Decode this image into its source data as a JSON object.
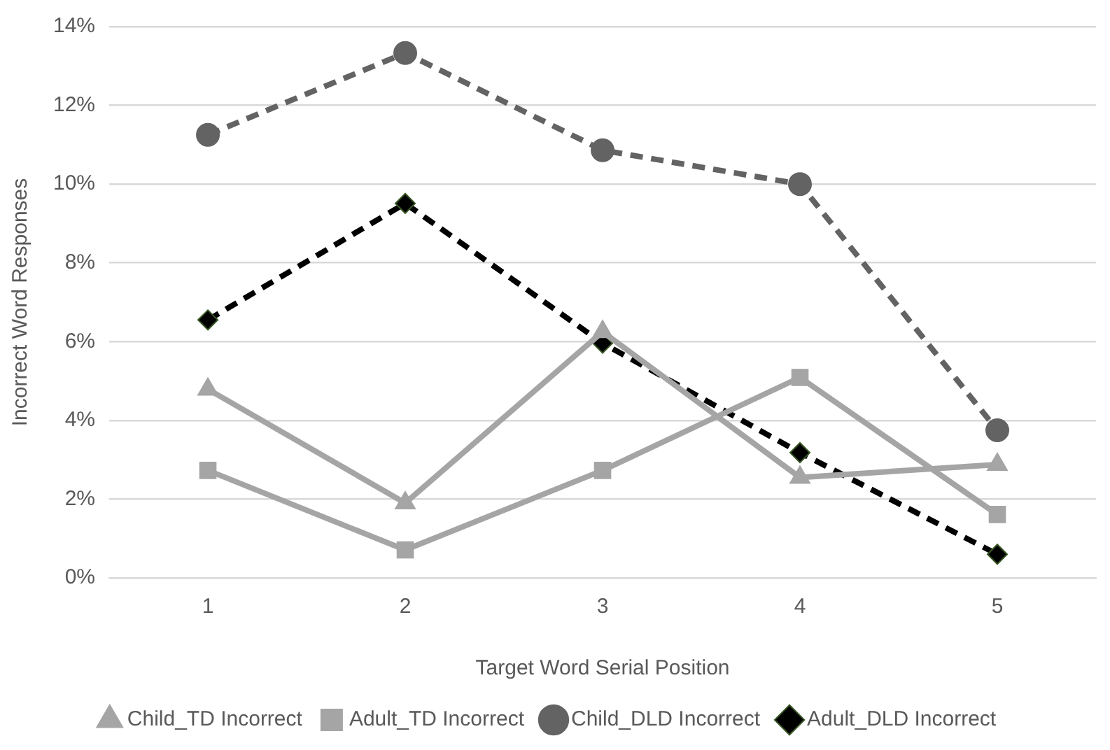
{
  "chart_data": {
    "type": "line",
    "xlabel": "Target Word Serial Position",
    "ylabel": "Incorrect Word Responses",
    "categories": [
      "1",
      "2",
      "3",
      "4",
      "5"
    ],
    "ylim": [
      0,
      14
    ],
    "yticks": [
      {
        "value": 0,
        "label": "0%"
      },
      {
        "value": 2,
        "label": "2%"
      },
      {
        "value": 4,
        "label": "4%"
      },
      {
        "value": 6,
        "label": "6%"
      },
      {
        "value": 8,
        "label": "8%"
      },
      {
        "value": 10,
        "label": "10%"
      },
      {
        "value": 12,
        "label": "12%"
      },
      {
        "value": 14,
        "label": "14%"
      }
    ],
    "grid": "y",
    "legend": "bottom",
    "series": [
      {
        "name": "Child_TD Incorrect",
        "color": "#a5a5a5",
        "marker": "triangle",
        "line_style": "solid",
        "values": [
          4.79,
          1.9,
          6.25,
          2.55,
          2.88
        ]
      },
      {
        "name": "Adult_TD Incorrect",
        "color": "#a5a5a5",
        "marker": "square",
        "line_style": "solid",
        "values": [
          2.73,
          0.71,
          2.73,
          5.09,
          1.61
        ]
      },
      {
        "name": "Child_DLD Incorrect",
        "color": "#636363",
        "marker": "circle",
        "line_style": "dashed",
        "values": [
          11.25,
          13.33,
          10.86,
          10.0,
          3.75
        ]
      },
      {
        "name": "Adult_DLD Incorrect",
        "color": "#000000",
        "marker": "diamond",
        "line_style": "dashed",
        "values": [
          6.55,
          9.51,
          5.96,
          3.18,
          0.6
        ]
      }
    ]
  }
}
